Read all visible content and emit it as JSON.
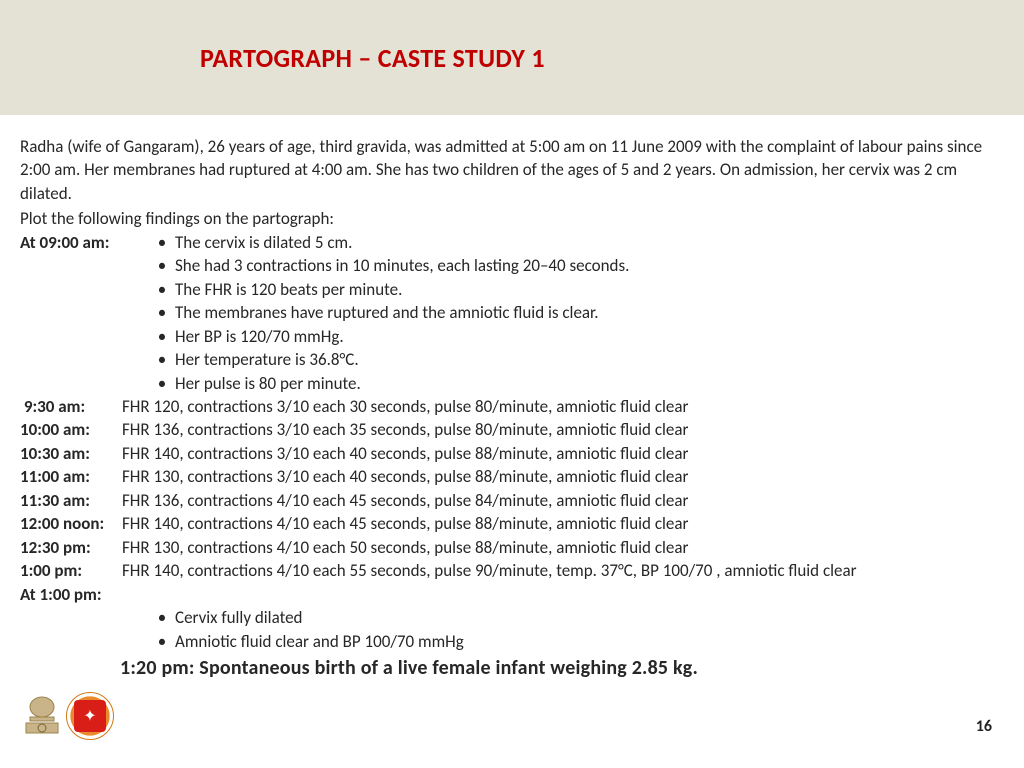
{
  "header": {
    "title": "PARTOGRAPH – CASTE STUDY 1",
    "band_color": "#e3e2d5",
    "title_color": "#c00000"
  },
  "intro": "Radha (wife of Gangaram), 26 years of age, third gravida, was admitted at 5:00 am on 11 June 2009 with the complaint of labour pains since 2:00 am. Her membranes had ruptured at 4:00 am. She has two children of the ages of 5 and 2 years. On admission, her cervix was 2 cm dilated.",
  "plot_instruction": "Plot the following findings on the partograph:",
  "block1": {
    "time_label": "At 09:00 am:",
    "bullets": [
      "The cervix is dilated 5 cm.",
      "She had 3 contractions in 10 minutes, each lasting 20–40 seconds.",
      "The FHR is 120 beats per minute.",
      "The membranes have ruptured and the amniotic fluid is clear.",
      "Her BP is 120/70 mmHg.",
      "Her temperature is 36.8°C.",
      "Her pulse is 80 per minute."
    ]
  },
  "observations": [
    {
      "time": " 9:30 am:",
      "text": "FHR 120, contractions 3/10 each 30 seconds, pulse 80/minute, amniotic fluid clear"
    },
    {
      "time": "10:00 am:",
      "text": "FHR 136, contractions 3/10 each 35 seconds, pulse 80/minute, amniotic fluid clear"
    },
    {
      "time": "10:30 am:",
      "text": "FHR 140, contractions 3/10 each 40 seconds, pulse 88/minute, amniotic fluid clear"
    },
    {
      "time": "11:00 am:",
      "text": "FHR 130, contractions 3/10 each 40 seconds, pulse 88/minute, amniotic fluid clear"
    },
    {
      "time": "11:30 am:",
      "text": "FHR 136, contractions 4/10 each 45 seconds, pulse 84/minute, amniotic fluid clear"
    },
    {
      "time": "12:00 noon:",
      "text": "FHR 140, contractions 4/10 each 45 seconds, pulse 88/minute, amniotic fluid clear"
    },
    {
      "time": "12:30 pm:",
      "text": "FHR 130, contractions 4/10 each 50 seconds, pulse 88/minute, amniotic fluid clear"
    },
    {
      "time": "1:00 pm:",
      "text": "FHR 140, contractions 4/10 each 55 seconds, pulse 90/minute, temp. 37°C, BP 100/70 , amniotic fluid clear"
    }
  ],
  "block2": {
    "time_label": " At 1:00 pm:",
    "bullets": [
      "Cervix fully dilated",
      "Amniotic fluid clear  and  BP 100/70 mmHg"
    ]
  },
  "final": "1:20 pm:  Spontaneous birth of a live female infant weighing 2.85 kg.",
  "page_number": "16",
  "logos": {
    "emblem_name": "india-emblem",
    "nhm_name": "national-health-mission"
  }
}
